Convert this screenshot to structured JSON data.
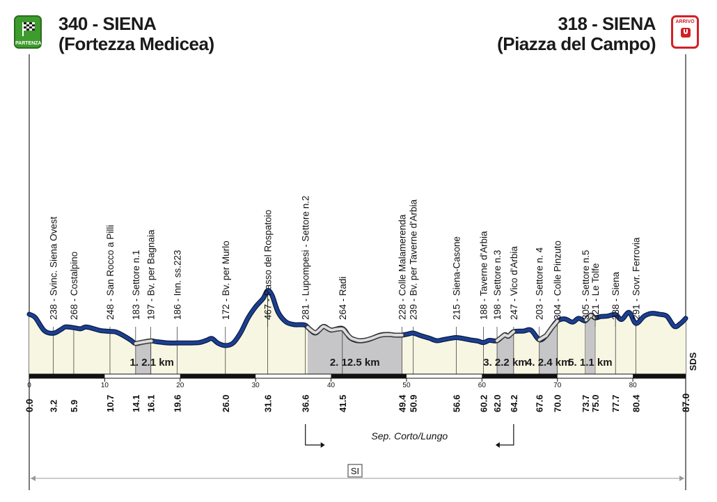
{
  "start": {
    "altitude_label": "340 - SIENA",
    "place": "(Fortezza Medicea)",
    "badge": "PARTENZA"
  },
  "finish": {
    "altitude_label": "318 - SIENA",
    "place": "(Piazza del Campo)",
    "badge": "ARRIVO"
  },
  "total_km": 87.0,
  "scale_ticks": [
    "0",
    "10",
    "20",
    "30",
    "40",
    "50",
    "60",
    "70",
    "80"
  ],
  "profile_points": [
    [
      0,
      340
    ],
    [
      0.8,
      322
    ],
    [
      2.0,
      252
    ],
    [
      3.2,
      238
    ],
    [
      4.2,
      258
    ],
    [
      4.8,
      272
    ],
    [
      5.9,
      268
    ],
    [
      6.8,
      262
    ],
    [
      7.5,
      272
    ],
    [
      8.5,
      263
    ],
    [
      9.5,
      252
    ],
    [
      10.7,
      248
    ],
    [
      11.5,
      245
    ],
    [
      12.5,
      225
    ],
    [
      13.5,
      200
    ],
    [
      14.1,
      183
    ],
    [
      15.0,
      190
    ],
    [
      16.1,
      197
    ],
    [
      17.0,
      192
    ],
    [
      18.5,
      186
    ],
    [
      19.6,
      186
    ],
    [
      21.0,
      186
    ],
    [
      22.5,
      188
    ],
    [
      23.5,
      200
    ],
    [
      24.2,
      210
    ],
    [
      25.0,
      185
    ],
    [
      26.0,
      172
    ],
    [
      27.0,
      185
    ],
    [
      28.0,
      240
    ],
    [
      29.0,
      320
    ],
    [
      30.0,
      380
    ],
    [
      31.0,
      425
    ],
    [
      31.6,
      467
    ],
    [
      32.2,
      440
    ],
    [
      33.0,
      350
    ],
    [
      34.0,
      300
    ],
    [
      35.0,
      285
    ],
    [
      36.0,
      284
    ],
    [
      36.6,
      281
    ],
    [
      37.3,
      255
    ],
    [
      38.0,
      240
    ],
    [
      39.0,
      275
    ],
    [
      40.0,
      255
    ],
    [
      41.5,
      264
    ],
    [
      42.5,
      215
    ],
    [
      43.5,
      198
    ],
    [
      44.5,
      200
    ],
    [
      45.5,
      212
    ],
    [
      46.5,
      228
    ],
    [
      47.5,
      232
    ],
    [
      48.5,
      228
    ],
    [
      49.4,
      228
    ],
    [
      50.2,
      234
    ],
    [
      50.9,
      239
    ],
    [
      52.0,
      224
    ],
    [
      53.0,
      212
    ],
    [
      54.0,
      198
    ],
    [
      55.0,
      205
    ],
    [
      56.0,
      212
    ],
    [
      56.6,
      215
    ],
    [
      57.5,
      210
    ],
    [
      58.5,
      202
    ],
    [
      59.5,
      196
    ],
    [
      60.2,
      188
    ],
    [
      61.0,
      200
    ],
    [
      62.0,
      198
    ],
    [
      63.0,
      230
    ],
    [
      63.5,
      222
    ],
    [
      64.2,
      247
    ],
    [
      65.5,
      250
    ],
    [
      66.5,
      255
    ],
    [
      67.6,
      203
    ],
    [
      68.5,
      225
    ],
    [
      69.3,
      270
    ],
    [
      70.0,
      304
    ],
    [
      71.0,
      315
    ],
    [
      72.0,
      298
    ],
    [
      72.8,
      318
    ],
    [
      73.7,
      305
    ],
    [
      74.4,
      335
    ],
    [
      75.0,
      321
    ],
    [
      75.8,
      328
    ],
    [
      76.6,
      330
    ],
    [
      77.7,
      338
    ],
    [
      78.5,
      312
    ],
    [
      79.5,
      350
    ],
    [
      80.4,
      291
    ],
    [
      81.5,
      330
    ],
    [
      82.5,
      345
    ],
    [
      83.5,
      340
    ],
    [
      84.5,
      330
    ],
    [
      85.5,
      275
    ],
    [
      86.3,
      290
    ],
    [
      87.0,
      318
    ]
  ],
  "waypoints": [
    {
      "km": "0.0",
      "x": 0.0,
      "label": ""
    },
    {
      "km": "3.2",
      "x": 3.2,
      "label": "238 - Svinc. Siena Ovest"
    },
    {
      "km": "5.9",
      "x": 5.9,
      "label": "268 - Costalpino"
    },
    {
      "km": "10.7",
      "x": 10.7,
      "label": "248 - San Rocco a Pilli"
    },
    {
      "km": "14.1",
      "x": 14.1,
      "label": "183 - Settore n.1"
    },
    {
      "km": "16.1",
      "x": 16.1,
      "label": "197 - Bv. per Bagnaia"
    },
    {
      "km": "19.6",
      "x": 19.6,
      "label": "186 - Inn. ss.223"
    },
    {
      "km": "26.0",
      "x": 26.0,
      "label": "172 - Bv. per Murlo"
    },
    {
      "km": "31.6",
      "x": 31.6,
      "label": "467 - Passo del Rospatoio"
    },
    {
      "km": "36.6",
      "x": 36.6,
      "label": "281 - Lupompesi - Settore n.2"
    },
    {
      "km": "41.5",
      "x": 41.5,
      "label": "264 - Radi"
    },
    {
      "km": "49.4",
      "x": 49.4,
      "label": "228 - Colle Malamerenda"
    },
    {
      "km": "50.9",
      "x": 50.9,
      "label": "239 - Bv. per Taverne d'Arbia"
    },
    {
      "km": "56.6",
      "x": 56.6,
      "label": "215 - Siena-Casone"
    },
    {
      "km": "60.2",
      "x": 60.2,
      "label": "188 - Taverne d'Arbia"
    },
    {
      "km": "62.0",
      "x": 62.0,
      "label": "198 - Settore n.3"
    },
    {
      "km": "64.2",
      "x": 64.2,
      "label": "247 - Vico d'Arbia"
    },
    {
      "km": "67.6",
      "x": 67.6,
      "label": "203 - Settore n. 4"
    },
    {
      "km": "70.0",
      "x": 70.0,
      "label": "304 - Colle Pinzuto"
    },
    {
      "km": "73.7",
      "x": 73.7,
      "label": "305 - Settore n.5"
    },
    {
      "km": "75.0",
      "x": 75.0,
      "label": "321 - Le Tolfe"
    },
    {
      "km": "77.7",
      "x": 77.7,
      "label": "338 - Siena"
    },
    {
      "km": "80.4",
      "x": 80.4,
      "label": "291 - Sovr. Ferrovia"
    },
    {
      "km": "87.0",
      "x": 87.0,
      "label": ""
    }
  ],
  "sectors": [
    {
      "label": "1. 2.1 km",
      "from": 14.1,
      "to": 16.2
    },
    {
      "label": "2. 12.5 km",
      "from": 36.9,
      "to": 49.4
    },
    {
      "label": "3. 2.2 km",
      "from": 62.0,
      "to": 64.2
    },
    {
      "label": "4. 2.4 km",
      "from": 67.6,
      "to": 70.0
    },
    {
      "label": "5. 1.1 km",
      "from": 73.8,
      "to": 74.9
    }
  ],
  "split_label": "Sep. Corto/Lungo",
  "bottom_label": "SI",
  "side_label": "SDS",
  "colors": {
    "route": "#1b3f93",
    "route_outline": "#0a1a3c",
    "fill": "#f7f6e3",
    "gravel": "#c6c6c8",
    "gravel_line": "#dcdcdc",
    "badge_start": "#3e9b2e",
    "badge_finish": "#d21f26"
  }
}
